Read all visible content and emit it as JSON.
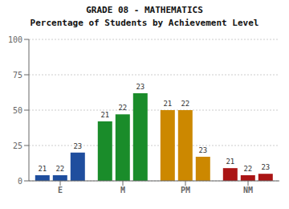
{
  "chart_data": {
    "type": "bar",
    "title": "GRADE 08 - MATHEMATICS",
    "subtitle": "Percentage of Students by Achievement Level",
    "categories": [
      "E",
      "M",
      "PM",
      "NM"
    ],
    "series": [
      {
        "name": "21",
        "values": [
          4,
          42,
          50,
          9
        ]
      },
      {
        "name": "22",
        "values": [
          4,
          47,
          50,
          4
        ]
      },
      {
        "name": "23",
        "values": [
          20,
          62,
          17,
          5
        ]
      }
    ],
    "colors": [
      "#1f4e9e",
      "#1a8c2a",
      "#cc8800",
      "#aa1515"
    ],
    "ylim": [
      0,
      100
    ],
    "yticks": [
      0,
      25,
      50,
      75,
      100
    ],
    "grid": true
  }
}
